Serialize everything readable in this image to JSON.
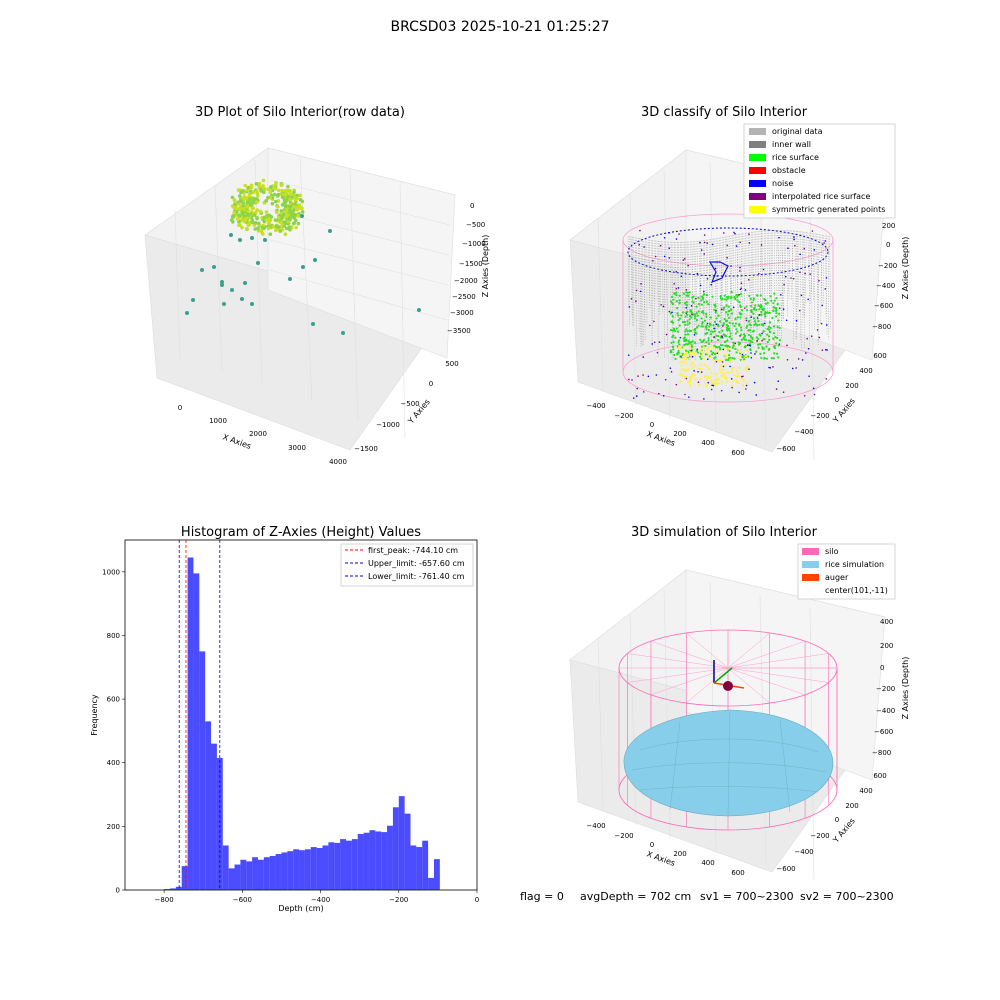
{
  "figure": {
    "suptitle": "BRCSD03 2025-10-21 01:25:27"
  },
  "panels": {
    "raw": {
      "title": "3D Plot of Silo Interior(row data)",
      "xlabel": "X Axies",
      "ylabel": "Y Axies",
      "zlabel": "Z Axies (Depth)",
      "xticks": [
        "0",
        "1000",
        "2000",
        "3000",
        "4000"
      ],
      "yticks": [
        "500",
        "0",
        "−500",
        "−1000",
        "−1500"
      ],
      "zticks": [
        "0",
        "−500",
        "−1000",
        "−1500",
        "−2000",
        "−2500",
        "−3000",
        "−3500"
      ]
    },
    "classify": {
      "title": "3D classify of Silo Interior",
      "xlabel": "X Axies",
      "ylabel": "Y Axies",
      "zlabel": "Z Axies (Depth)",
      "xticks": [
        "−400",
        "−200",
        "0",
        "200",
        "400",
        "600"
      ],
      "yticks": [
        "600",
        "400",
        "200",
        "0",
        "−200",
        "−400",
        "−600"
      ],
      "zticks": [
        "200",
        "0",
        "−200",
        "−400",
        "−600",
        "−800"
      ],
      "legend": [
        {
          "label": "original data",
          "color": "#b3b3b3"
        },
        {
          "label": "inner wall",
          "color": "#808080"
        },
        {
          "label": "rice surface",
          "color": "#00ff00"
        },
        {
          "label": "obstacle",
          "color": "#ff0000"
        },
        {
          "label": "noise",
          "color": "#0000ff"
        },
        {
          "label": "interpolated rice surface",
          "color": "#800080"
        },
        {
          "label": "symmetric generated points",
          "color": "#ffff00"
        }
      ]
    },
    "simulation": {
      "title": "3D simulation of Silo Interior",
      "xlabel": "X Axies",
      "ylabel": "Y Axies",
      "zlabel": "Z Axies (Depth)",
      "xticks": [
        "−400",
        "−200",
        "0",
        "200",
        "400",
        "600"
      ],
      "yticks": [
        "600",
        "400",
        "200",
        "0",
        "−200",
        "−400",
        "−600"
      ],
      "zticks": [
        "400",
        "200",
        "0",
        "−200",
        "−400",
        "−600",
        "−800"
      ],
      "legend": [
        {
          "label": "silo",
          "color": "#ff69b4"
        },
        {
          "label": "rice simulation",
          "color": "#87ceeb"
        },
        {
          "label": "auger",
          "color": "#ff4500"
        },
        {
          "label": "center(101,-11)",
          "color": ""
        }
      ]
    }
  },
  "status": {
    "flag": "flag = 0",
    "avg_depth": "avgDepth = 702 cm",
    "sv1": "sv1 = 700~2300",
    "sv2": "sv2 = 700~2300"
  },
  "chart_data": [
    {
      "type": "bar",
      "title": "Histogram of Z-Axies (Height) Values",
      "xlabel": "Depth (cm)",
      "ylabel": "Frequency",
      "xlim": [
        -900,
        0
      ],
      "ylim": [
        0,
        1100
      ],
      "xticks": [
        -800,
        -600,
        -400,
        -200,
        0
      ],
      "yticks": [
        0,
        200,
        400,
        600,
        800,
        1000
      ],
      "bin_width": 15,
      "bin_start": -800,
      "color": "#0000ff",
      "values": [
        3,
        5,
        10,
        75,
        1045,
        995,
        750,
        530,
        460,
        415,
        140,
        68,
        80,
        95,
        90,
        103,
        95,
        103,
        107,
        113,
        118,
        122,
        128,
        125,
        128,
        135,
        132,
        140,
        150,
        148,
        160,
        155,
        160,
        176,
        180,
        188,
        184,
        182,
        202,
        260,
        295,
        240,
        140,
        135,
        155,
        38,
        97
      ],
      "vlines": [
        {
          "x": -744.1,
          "color": "#ff0000",
          "label": "first_peak: -744.10 cm"
        },
        {
          "x": -657.6,
          "color": "#0000cc",
          "label": "Upper_limit: -657.60 cm"
        },
        {
          "x": -761.4,
          "color": "#0000cc",
          "label": "Lower_limit: -761.40 cm"
        }
      ],
      "legend_position": "top-right"
    }
  ]
}
